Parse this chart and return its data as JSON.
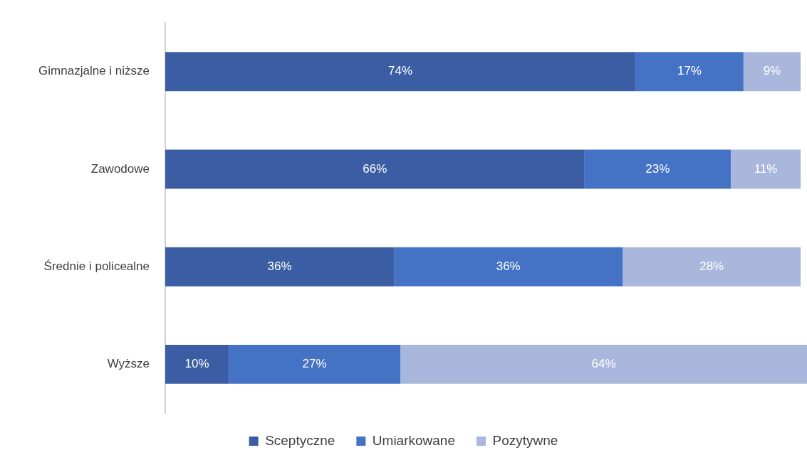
{
  "chart_data": {
    "type": "bar",
    "orientation": "horizontal",
    "stacked": true,
    "categories": [
      "Gimnazjalne i niższe",
      "Zawodowe",
      "Średnie i policealne",
      "Wyższe"
    ],
    "xlim": [
      0,
      101
    ],
    "series": [
      {
        "name": "Sceptyczne",
        "color": "#3a5da3",
        "values": [
          74,
          66,
          36,
          10
        ],
        "value_labels": [
          "74%",
          "66%",
          "36%",
          "10%"
        ]
      },
      {
        "name": "Umiarkowane",
        "color": "#4472c4",
        "values": [
          17,
          23,
          36,
          27
        ],
        "value_labels": [
          "17%",
          "23%",
          "36%",
          "27%"
        ]
      },
      {
        "name": "Pozytywne",
        "color": "#a9b7dc",
        "values": [
          9,
          11,
          28,
          64
        ],
        "value_labels": [
          "9%",
          "11%",
          "28%",
          "64%"
        ]
      }
    ],
    "grid": false,
    "legend": "bottom",
    "tick_labels": "y"
  }
}
